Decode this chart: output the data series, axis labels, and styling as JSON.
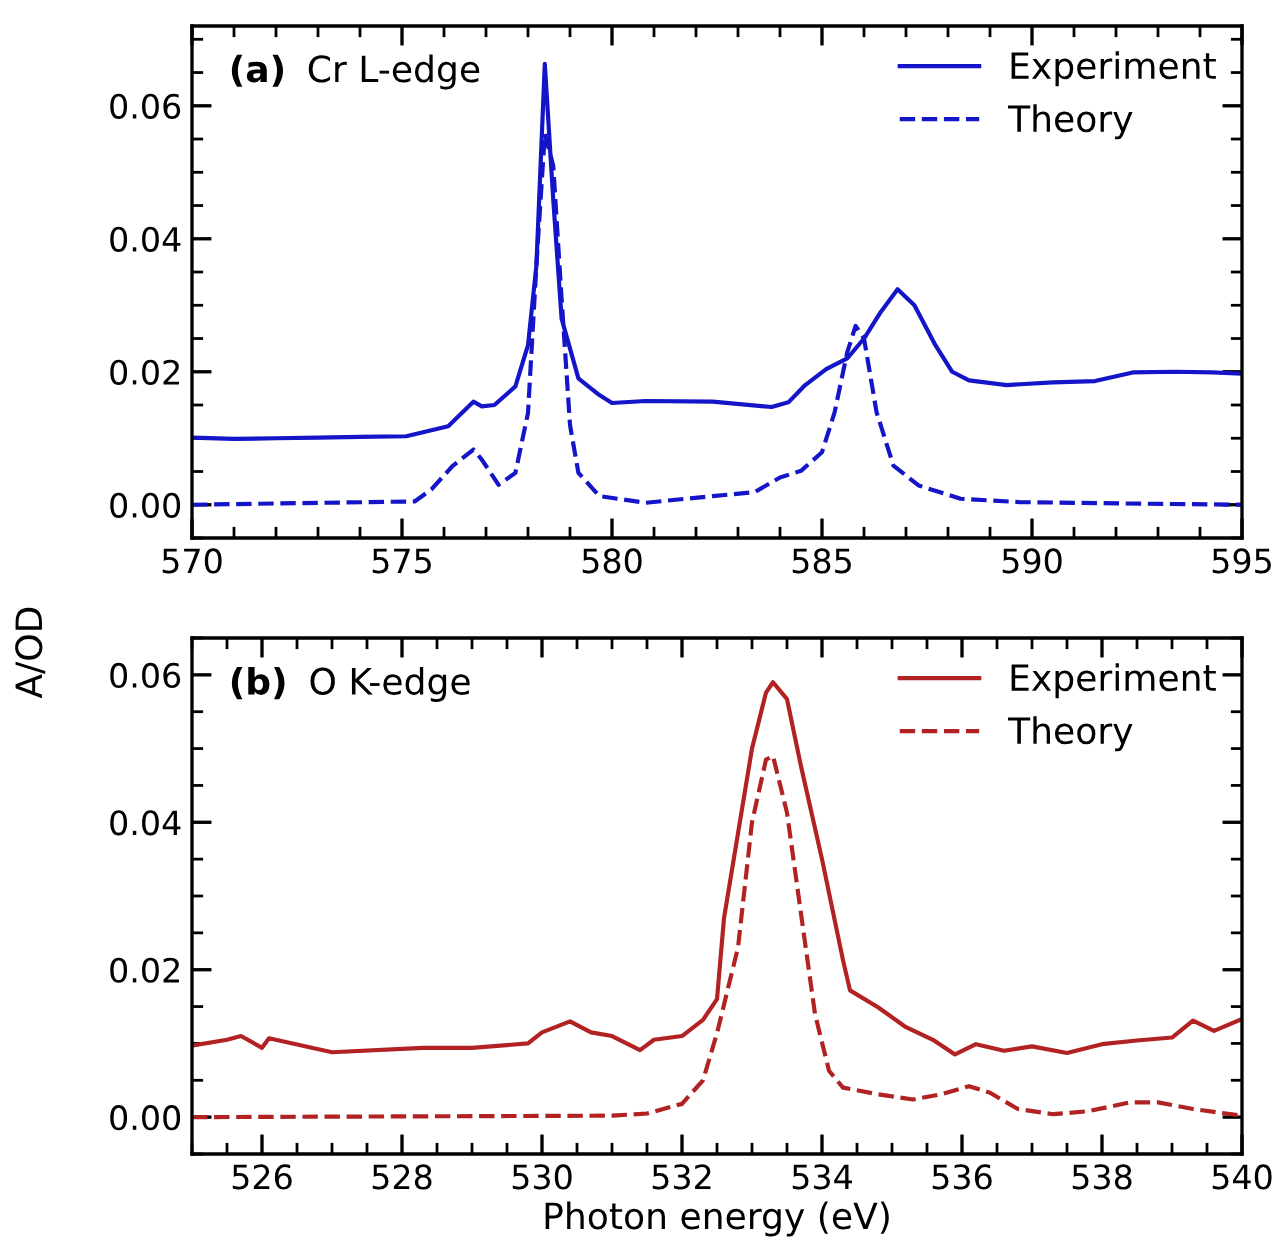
{
  "chart_data": [
    {
      "type": "line",
      "annotations": [
        "(a)",
        "Cr L-edge"
      ],
      "ylabel": "A/OD",
      "xlim": [
        570,
        595
      ],
      "xticks": [
        570,
        575,
        580,
        585,
        590,
        595
      ],
      "ylim": [
        -0.005,
        0.072
      ],
      "yticks": [
        {
          "value": 0,
          "label": "0.00"
        },
        {
          "value": 0.02,
          "label": "0.02"
        },
        {
          "value": 0.04,
          "label": "0.04"
        },
        {
          "value": 0.06,
          "label": "0.06"
        }
      ],
      "legend": "top right",
      "grid": false,
      "series": [
        {
          "name": "Experiment",
          "color": "#1414c8",
          "line_style": "solid",
          "x": [
            570,
            571,
            572,
            573,
            574,
            575.1,
            576.1,
            576.7,
            576.9,
            577.2,
            577.7,
            578.0,
            578.2,
            578.4,
            578.6,
            578.8,
            579.2,
            579.4,
            579.7,
            580,
            580.8,
            582.4,
            583.8,
            584.2,
            584.6,
            585.1,
            585.6,
            586.0,
            586.4,
            586.8,
            587.2,
            587.7,
            588.1,
            588.5,
            589.4,
            590.5,
            591.5,
            592.4,
            593.4,
            594.3,
            595
          ],
          "values": [
            0.0101,
            0.0099,
            0.01,
            0.0101,
            0.0102,
            0.0103,
            0.0118,
            0.0155,
            0.0148,
            0.015,
            0.0178,
            0.024,
            0.036,
            0.0663,
            0.046,
            0.028,
            0.019,
            0.018,
            0.0165,
            0.0153,
            0.0156,
            0.0155,
            0.0147,
            0.0154,
            0.018,
            0.0204,
            0.022,
            0.025,
            0.029,
            0.0324,
            0.03,
            0.024,
            0.02,
            0.0187,
            0.018,
            0.0184,
            0.0186,
            0.0199,
            0.02,
            0.0199,
            0.0197
          ]
        },
        {
          "name": "Theory",
          "color": "#1414c8",
          "line_style": "dashed",
          "x": [
            570,
            575.3,
            575.7,
            576.2,
            576.7,
            576.9,
            577.3,
            577.7,
            578.0,
            578.2,
            578.4,
            578.6,
            578.8,
            579.0,
            579.2,
            579.7,
            580.8,
            582.4,
            583.4,
            584.0,
            584.5,
            585.0,
            585.3,
            585.6,
            585.8,
            586.0,
            586.3,
            586.7,
            587.3,
            588.3,
            589.7,
            592.1,
            595
          ],
          "values": [
            0,
            0.0005,
            0.0023,
            0.0058,
            0.0083,
            0.0068,
            0.003,
            0.0048,
            0.0138,
            0.036,
            0.0558,
            0.051,
            0.031,
            0.012,
            0.0048,
            0.0013,
            0.0003,
            0.0013,
            0.0019,
            0.0041,
            0.0051,
            0.0079,
            0.0139,
            0.0229,
            0.0269,
            0.025,
            0.0139,
            0.0059,
            0.0029,
            0.0009,
            0.0004,
            0.0002,
            0
          ]
        }
      ]
    },
    {
      "type": "line",
      "annotations": [
        "(b)",
        "O K-edge"
      ],
      "xlabel": "Photon energy (eV)",
      "xlim": [
        525,
        540
      ],
      "xticks": [
        526,
        528,
        530,
        532,
        534,
        536,
        538,
        540
      ],
      "ylim": [
        -0.005,
        0.065
      ],
      "yticks": [
        {
          "value": 0,
          "label": "0.00"
        },
        {
          "value": 0.02,
          "label": "0.02"
        },
        {
          "value": 0.04,
          "label": "0.04"
        },
        {
          "value": 0.06,
          "label": "0.06"
        }
      ],
      "legend": "top right",
      "grid": false,
      "series": [
        {
          "name": "Experiment",
          "color": "#b22222",
          "line_style": "solid",
          "x": [
            525,
            525.5,
            525.7,
            526,
            526.1,
            527,
            528.3,
            529,
            529.8,
            530,
            530.4,
            530.7,
            531,
            531.4,
            531.6,
            532,
            532.3,
            532.5,
            532.6,
            532.8,
            533.0,
            533.2,
            533.3,
            533.5,
            533.7,
            534,
            534.3,
            534.4,
            534.8,
            535.2,
            535.6,
            535.9,
            536.2,
            536.6,
            537,
            537.5,
            538,
            538.5,
            539,
            539.3,
            539.6,
            540
          ],
          "values": [
            0.0097,
            0.0105,
            0.011,
            0.0094,
            0.0107,
            0.0088,
            0.0094,
            0.0094,
            0.01,
            0.0115,
            0.013,
            0.0115,
            0.011,
            0.0091,
            0.0105,
            0.011,
            0.0132,
            0.016,
            0.027,
            0.0385,
            0.05,
            0.0576,
            0.059,
            0.0567,
            0.0476,
            0.035,
            0.0213,
            0.0172,
            0.0149,
            0.0122,
            0.0104,
            0.0085,
            0.0099,
            0.009,
            0.0096,
            0.0087,
            0.0099,
            0.0104,
            0.0108,
            0.0131,
            0.0117,
            0.0133
          ]
        },
        {
          "name": "Theory",
          "color": "#b22222",
          "line_style": "dashed",
          "x": [
            525,
            531,
            531.5,
            532,
            532.3,
            532.5,
            532.8,
            533.0,
            533.2,
            533.3,
            533.5,
            533.7,
            533.9,
            534.1,
            534.3,
            534.8,
            535.3,
            535.7,
            536.1,
            536.4,
            536.8,
            537.3,
            537.8,
            538.4,
            538.8,
            539.3,
            540
          ],
          "values": [
            0,
            0.0002,
            0.0005,
            0.0018,
            0.005,
            0.0114,
            0.023,
            0.04,
            0.0485,
            0.049,
            0.0413,
            0.0276,
            0.014,
            0.0063,
            0.004,
            0.0031,
            0.0024,
            0.0031,
            0.0042,
            0.0033,
            0.0011,
            0.0004,
            0.0008,
            0.002,
            0.002,
            0.0011,
            0.0002
          ]
        }
      ]
    }
  ]
}
